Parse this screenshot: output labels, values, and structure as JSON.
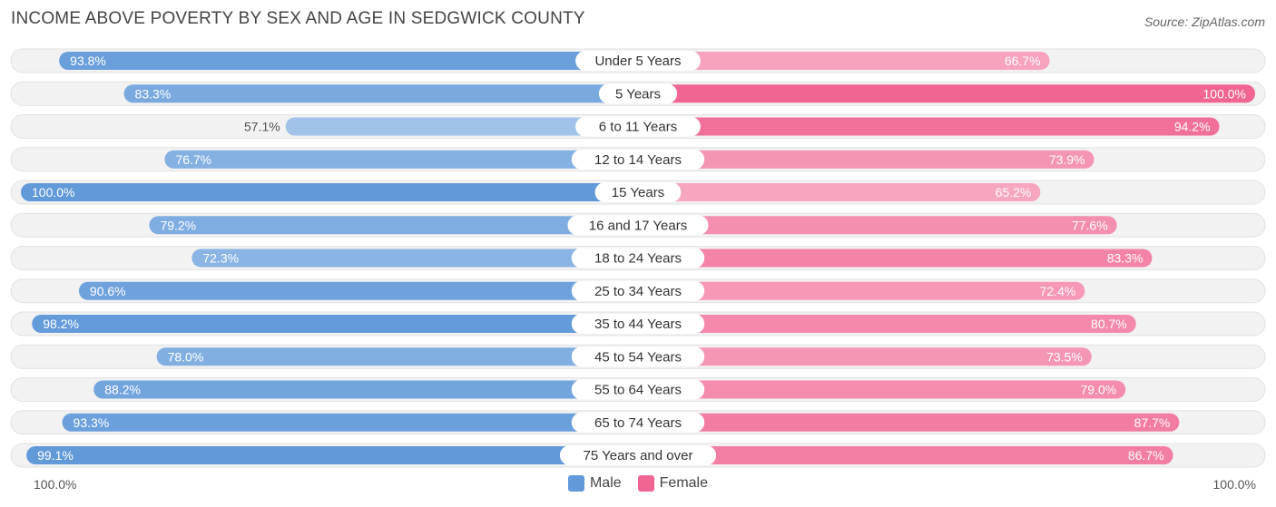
{
  "title": "INCOME ABOVE POVERTY BY SEX AND AGE IN SEDGWICK COUNTY",
  "source": "Source: ZipAtlas.com",
  "axis": {
    "left_label": "100.0%",
    "right_label": "100.0%"
  },
  "legend": {
    "male_label": "Male",
    "female_label": "Female"
  },
  "colors": {
    "male_strong": "#6199d9",
    "male_light": "#a4c5ea",
    "female_strong": "#f06591",
    "female_light": "#f7a6c0",
    "track": "#efefef"
  },
  "chart_data": {
    "type": "bar",
    "orientation": "horizontal-diverging",
    "title": "INCOME ABOVE POVERTY BY SEX AND AGE IN SEDGWICK COUNTY",
    "categories": [
      "Under 5 Years",
      "5 Years",
      "6 to 11 Years",
      "12 to 14 Years",
      "15 Years",
      "16 and 17 Years",
      "18 to 24 Years",
      "25 to 34 Years",
      "35 to 44 Years",
      "45 to 54 Years",
      "55 to 64 Years",
      "65 to 74 Years",
      "75 Years and over"
    ],
    "series": [
      {
        "name": "Male",
        "values": [
          93.8,
          83.3,
          57.1,
          76.7,
          100.0,
          79.2,
          72.3,
          90.6,
          98.2,
          78.0,
          88.2,
          93.3,
          99.1
        ],
        "labels": [
          "93.8%",
          "83.3%",
          "57.1%",
          "76.7%",
          "100.0%",
          "79.2%",
          "72.3%",
          "90.6%",
          "98.2%",
          "78.0%",
          "88.2%",
          "93.3%",
          "99.1%"
        ]
      },
      {
        "name": "Female",
        "values": [
          66.7,
          100.0,
          94.2,
          73.9,
          65.2,
          77.6,
          83.3,
          72.4,
          80.7,
          73.5,
          79.0,
          87.7,
          86.7
        ],
        "labels": [
          "66.7%",
          "100.0%",
          "94.2%",
          "73.9%",
          "65.2%",
          "77.6%",
          "83.3%",
          "72.4%",
          "80.7%",
          "73.5%",
          "79.0%",
          "87.7%",
          "86.7%"
        ]
      }
    ],
    "xlim": [
      0,
      100
    ],
    "legend_position": "bottom-center"
  }
}
